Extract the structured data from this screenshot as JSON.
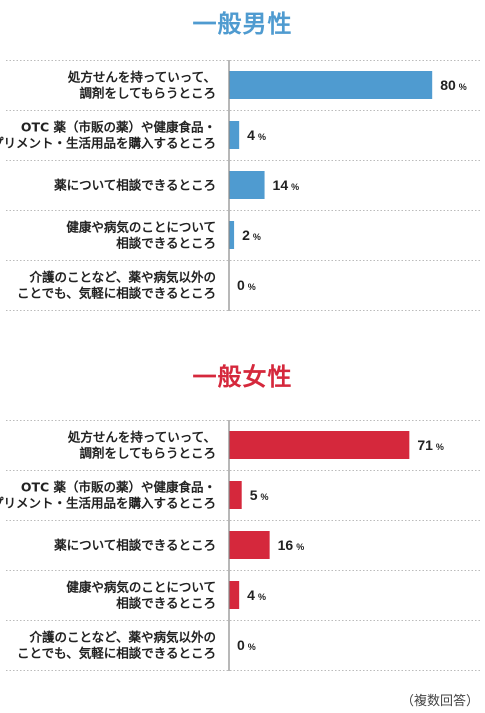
{
  "chart_data": [
    {
      "type": "bar",
      "orientation": "horizontal",
      "title": "一般男性",
      "color": "#4f9bd0",
      "unit": "%",
      "xlim": [
        0,
        100
      ],
      "categories": [
        [
          "処方せんを持っていって、",
          "調剤をしてもらうところ"
        ],
        [
          "OTC 薬（市販の薬）や健康食品・",
          "サプリメント・生活用品を購入するところ"
        ],
        [
          "薬について相談できるところ"
        ],
        [
          "健康や病気のことについて",
          "相談できるところ"
        ],
        [
          "介護のことなど、薬や病気以外の",
          "ことでも、気軽に相談できるところ"
        ]
      ],
      "values": [
        80,
        4,
        14,
        2,
        0
      ]
    },
    {
      "type": "bar",
      "orientation": "horizontal",
      "title": "一般女性",
      "color": "#d5283c",
      "unit": "%",
      "xlim": [
        0,
        100
      ],
      "categories": [
        [
          "処方せんを持っていって、",
          "調剤をしてもらうところ"
        ],
        [
          "OTC 薬（市販の薬）や健康食品・",
          "サプリメント・生活用品を購入するところ"
        ],
        [
          "薬について相談できるところ"
        ],
        [
          "健康や病気のことについて",
          "相談できるところ"
        ],
        [
          "介護のことなど、薬や病気以外の",
          "ことでも、気軽に相談できるところ"
        ]
      ],
      "values": [
        71,
        5,
        16,
        4,
        0
      ]
    }
  ],
  "footnote": "（複数回答）"
}
